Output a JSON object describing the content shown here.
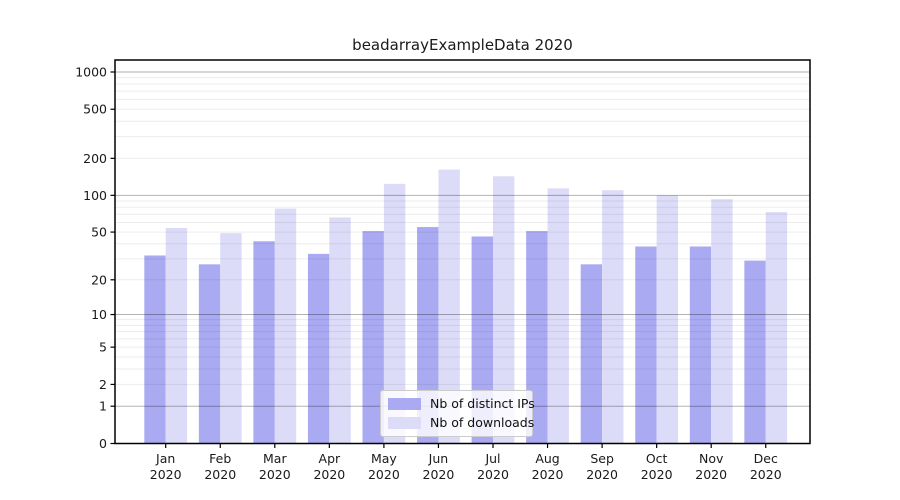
{
  "chart_data": {
    "type": "bar",
    "title": "beadarrayExampleData 2020",
    "categories": [
      "Jan",
      "Feb",
      "Mar",
      "Apr",
      "May",
      "Jun",
      "Jul",
      "Aug",
      "Sep",
      "Oct",
      "Nov",
      "Dec"
    ],
    "x_year_label": "2020",
    "series": [
      {
        "name": "Nb of distinct IPs",
        "color": "#aaaaf2",
        "values": [
          32,
          27,
          42,
          33,
          51,
          55,
          46,
          51,
          27,
          38,
          38,
          29
        ]
      },
      {
        "name": "Nb of downloads",
        "color": "#dcdcf8",
        "values": [
          54,
          49,
          78,
          66,
          124,
          162,
          143,
          114,
          110,
          100,
          93,
          73
        ]
      }
    ],
    "y_axis": {
      "scale": "log1p",
      "tick_labels": [
        "0",
        "1",
        "2",
        "5",
        "10",
        "20",
        "50",
        "100",
        "200",
        "500",
        "1000"
      ],
      "ticks": [
        0,
        1,
        2,
        5,
        10,
        20,
        50,
        100,
        200,
        500,
        1000
      ],
      "major_gridlines": [
        1,
        10,
        100,
        1000
      ],
      "range_top": 1000
    },
    "grid": true,
    "legend_position": "bottom-center"
  }
}
